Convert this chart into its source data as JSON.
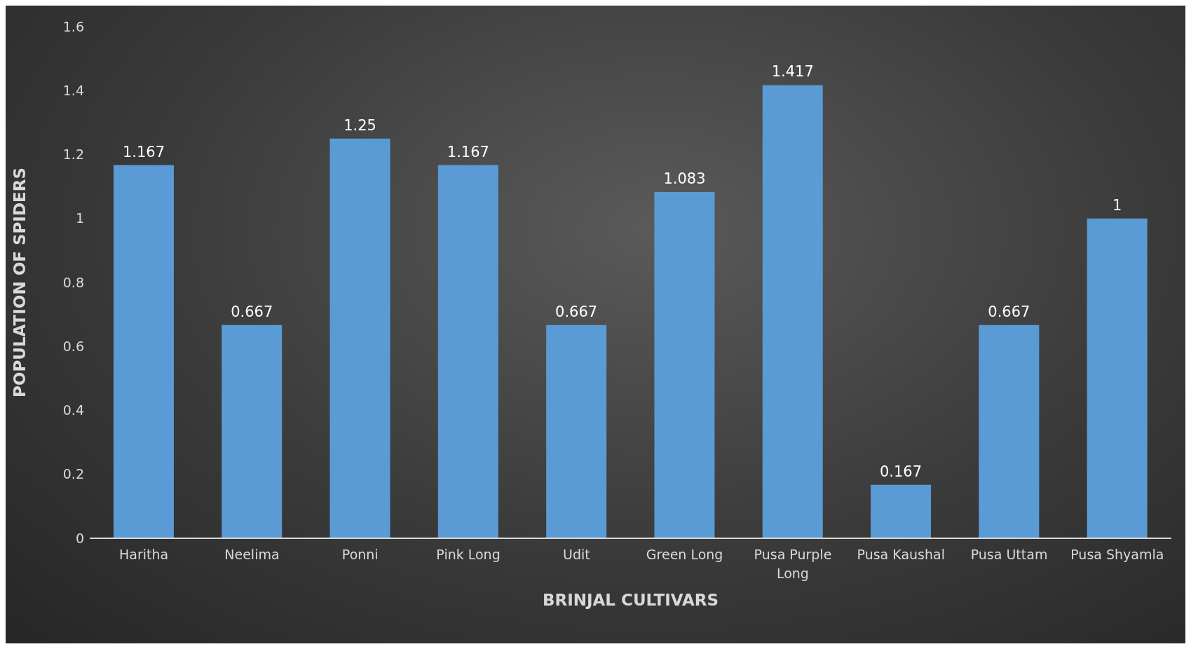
{
  "chart_data": {
    "type": "bar",
    "xlabel": "BRINJAL CULTIVARS",
    "ylabel": "POPULATION OF SPIDERS",
    "categories": [
      "Haritha",
      "Neelima",
      "Ponni",
      "Pink Long",
      "Udit",
      "Green Long",
      "Pusa Purple Long",
      "Pusa Kaushal",
      "Pusa Uttam",
      "Pusa Shyamla"
    ],
    "values": [
      1.167,
      0.667,
      1.25,
      1.167,
      0.667,
      1.083,
      1.417,
      0.167,
      0.667,
      1
    ],
    "color": "#5b9bd5",
    "ylim": [
      0,
      1.6
    ],
    "yticks": [
      0,
      0.2,
      0.4,
      0.6,
      0.8,
      1,
      1.2,
      1.4,
      1.6
    ],
    "grid": false,
    "legend": false,
    "data_labels": true
  }
}
